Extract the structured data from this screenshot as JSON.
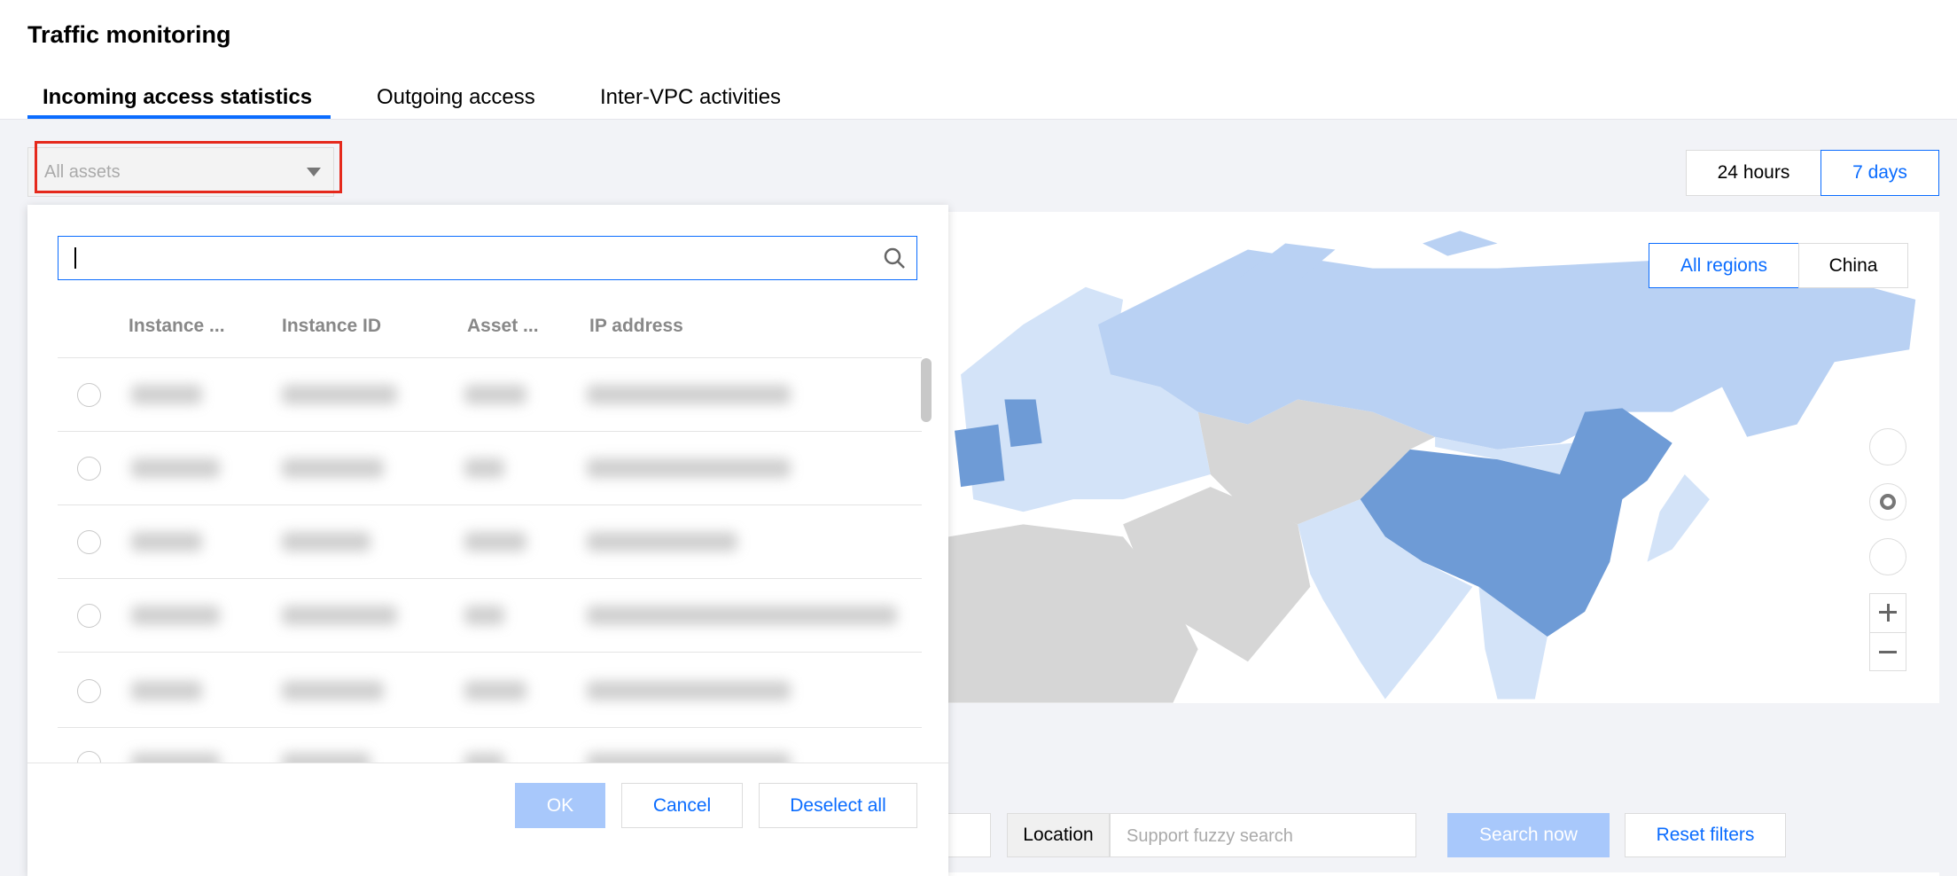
{
  "header": {
    "title": "Traffic monitoring"
  },
  "tabs": [
    "Incoming access statistics",
    "Outgoing access",
    "Inter-VPC activities"
  ],
  "asset_select": {
    "placeholder": "All assets"
  },
  "time_range": [
    "24 hours",
    "7 days"
  ],
  "map": {
    "regions": [
      "All regions",
      "China"
    ]
  },
  "dropdown": {
    "columns": [
      "Instance ...",
      "Instance ID",
      "Asset ...",
      "IP address"
    ],
    "buttons": [
      "OK",
      "Cancel",
      "Deselect all"
    ]
  },
  "filters": {
    "location_label": "Location",
    "location_placeholder": "Support fuzzy search",
    "buttons": [
      "Search now",
      "Reset filters"
    ]
  }
}
